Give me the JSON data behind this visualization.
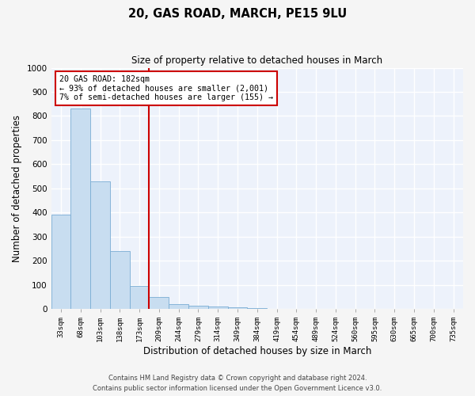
{
  "title": "20, GAS ROAD, MARCH, PE15 9LU",
  "subtitle": "Size of property relative to detached houses in March",
  "xlabel": "Distribution of detached houses by size in March",
  "ylabel": "Number of detached properties",
  "categories": [
    "33sqm",
    "68sqm",
    "103sqm",
    "138sqm",
    "173sqm",
    "209sqm",
    "244sqm",
    "279sqm",
    "314sqm",
    "349sqm",
    "384sqm",
    "419sqm",
    "454sqm",
    "489sqm",
    "524sqm",
    "560sqm",
    "595sqm",
    "630sqm",
    "665sqm",
    "700sqm",
    "735sqm"
  ],
  "values": [
    390,
    830,
    530,
    240,
    95,
    50,
    20,
    15,
    10,
    7,
    5,
    0,
    0,
    0,
    0,
    0,
    0,
    0,
    0,
    0,
    0
  ],
  "bar_color": "#c8ddf0",
  "bar_edgecolor": "#7aadd4",
  "vline_x": 4.5,
  "vline_color": "#cc0000",
  "annotation_title": "20 GAS ROAD: 182sqm",
  "annotation_line1": "← 93% of detached houses are smaller (2,001)",
  "annotation_line2": "7% of semi-detached houses are larger (155) →",
  "box_color": "#cc0000",
  "ylim": [
    0,
    1000
  ],
  "yticks": [
    0,
    100,
    200,
    300,
    400,
    500,
    600,
    700,
    800,
    900,
    1000
  ],
  "footer1": "Contains HM Land Registry data © Crown copyright and database right 2024.",
  "footer2": "Contains public sector information licensed under the Open Government Licence v3.0.",
  "plot_bg_color": "#edf2fb",
  "fig_bg_color": "#f5f5f5",
  "grid_color": "#ffffff"
}
